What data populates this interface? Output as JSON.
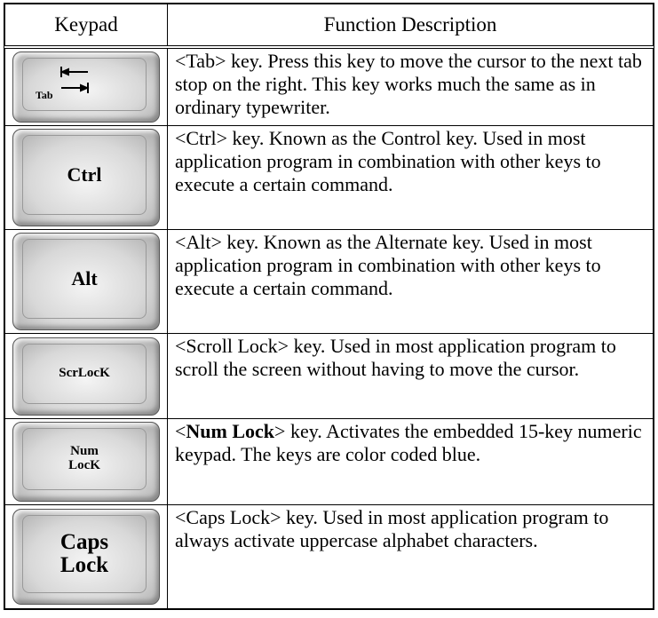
{
  "table": {
    "header": [
      "Keypad",
      "Function Description"
    ],
    "rows": [
      {
        "key": [
          "Tab"
        ],
        "description": [
          {
            "text": "<Tab> key. Press this key to move the cursor to the next tab stop on the right. This key works much the same as in ordinary typewriter."
          }
        ]
      },
      {
        "key": [
          "Ctrl"
        ],
        "description": [
          {
            "text": "<Ctrl> key. Known as the Control key. Used in most application program in combination with other keys to execute a certain command."
          }
        ]
      },
      {
        "key": [
          "Alt"
        ],
        "description": [
          {
            "text": "<Alt> key. Known as the Alternate key. Used in most application program in combination with other keys to execute a certain command."
          }
        ]
      },
      {
        "key": [
          "ScrLocK"
        ],
        "description": [
          {
            "text": "<Scroll Lock> key. Used in most application program to scroll the screen without having to move the cursor."
          }
        ]
      },
      {
        "key": [
          "Num",
          "LocK"
        ],
        "description": [
          {
            "text": "<"
          },
          {
            "text": "Num Lock",
            "bold": true
          },
          {
            "text": "> key. Activates the embedded 15-key numeric keypad. The keys are color coded blue."
          }
        ]
      },
      {
        "key": [
          "Caps",
          "Lock"
        ],
        "description": [
          {
            "text": "<Caps Lock> key. Used in most application program to always activate uppercase alphabet characters."
          }
        ]
      }
    ]
  }
}
